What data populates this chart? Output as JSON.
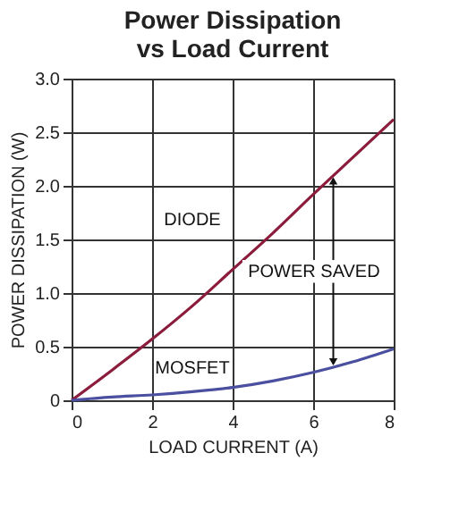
{
  "chart_data": {
    "type": "line",
    "title": "Power Dissipation\nvs Load Current",
    "xlabel": "LOAD CURRENT (A)",
    "ylabel": "POWER DISSIPATION (W)",
    "x": [
      0,
      1,
      2,
      3,
      4,
      5,
      6,
      7,
      8
    ],
    "series": [
      {
        "name": "DIODE",
        "color": "#8b1c3c",
        "values": [
          0,
          0.28,
          0.57,
          0.88,
          1.22,
          1.56,
          1.92,
          2.27,
          2.62
        ]
      },
      {
        "name": "MOSFET",
        "color": "#4a4fa0",
        "values": [
          0,
          0.03,
          0.05,
          0.08,
          0.12,
          0.18,
          0.26,
          0.36,
          0.48
        ]
      }
    ],
    "annotations": [
      "POWER SAVED"
    ],
    "xlim": [
      0,
      8
    ],
    "xticks": [
      0,
      2,
      4,
      6,
      8
    ],
    "ylim": [
      0,
      3
    ],
    "yticks": [
      0,
      {
        "value": 0.5,
        "label": "0.5"
      },
      {
        "value": 1,
        "label": "1.0"
      },
      {
        "value": 1.5,
        "label": "1.5"
      },
      {
        "value": 2,
        "label": "2.0"
      },
      {
        "value": 2.5,
        "label": "2.5"
      },
      {
        "value": 3,
        "label": "3.0"
      }
    ],
    "grid": true,
    "marker": "none",
    "line_style": "solid"
  }
}
